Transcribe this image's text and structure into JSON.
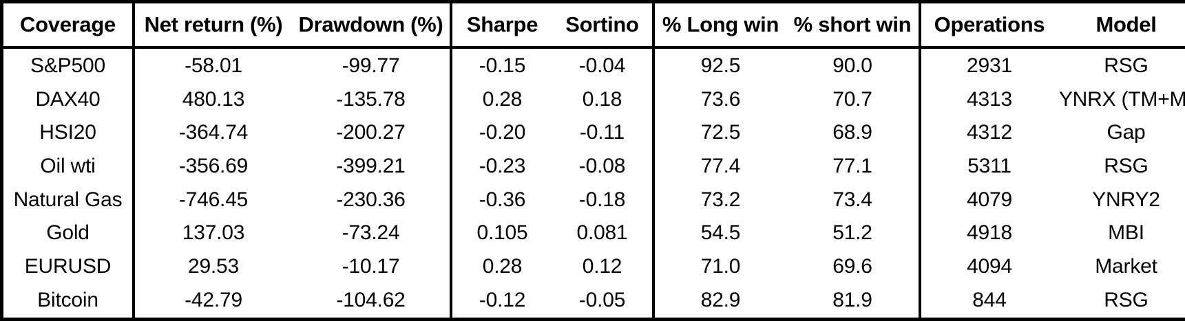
{
  "colors": {
    "border": "#000000",
    "text": "#000000",
    "background": "#ffffff"
  },
  "chart_data": {
    "type": "table",
    "title": "",
    "columns": [
      {
        "key": "coverage",
        "label": "Coverage",
        "group_end": true
      },
      {
        "key": "net_return",
        "label": "Net return (%)",
        "group_end": false
      },
      {
        "key": "drawdown",
        "label": "Drawdown (%)",
        "group_end": true
      },
      {
        "key": "sharpe",
        "label": "Sharpe",
        "group_end": false
      },
      {
        "key": "sortino",
        "label": "Sortino",
        "group_end": true
      },
      {
        "key": "long_win",
        "label": "% Long win",
        "group_end": false
      },
      {
        "key": "short_win",
        "label": "% short win",
        "group_end": true
      },
      {
        "key": "operations",
        "label": "Operations",
        "group_end": false
      },
      {
        "key": "model",
        "label": "Model",
        "group_end": false
      }
    ],
    "rows": [
      {
        "coverage": "S&P500",
        "net_return": "-58.01",
        "drawdown": "-99.77",
        "sharpe": "-0.15",
        "sortino": "-0.04",
        "long_win": "92.5",
        "short_win": "90.0",
        "operations": "2931",
        "model": "RSG"
      },
      {
        "coverage": "DAX40",
        "net_return": "480.13",
        "drawdown": "-135.78",
        "sharpe": "0.28",
        "sortino": "0.18",
        "long_win": "73.6",
        "short_win": "70.7",
        "operations": "4313",
        "model": "YNRX (TM+M)"
      },
      {
        "coverage": "HSI20",
        "net_return": "-364.74",
        "drawdown": "-200.27",
        "sharpe": "-0.20",
        "sortino": "-0.11",
        "long_win": "72.5",
        "short_win": "68.9",
        "operations": "4312",
        "model": "Gap"
      },
      {
        "coverage": "Oil wti",
        "net_return": "-356.69",
        "drawdown": "-399.21",
        "sharpe": "-0.23",
        "sortino": "-0.08",
        "long_win": "77.4",
        "short_win": "77.1",
        "operations": "5311",
        "model": "RSG"
      },
      {
        "coverage": "Natural Gas",
        "net_return": "-746.45",
        "drawdown": "-230.36",
        "sharpe": "-0.36",
        "sortino": "-0.18",
        "long_win": "73.2",
        "short_win": "73.4",
        "operations": "4079",
        "model": "YNRY2"
      },
      {
        "coverage": "Gold",
        "net_return": "137.03",
        "drawdown": "-73.24",
        "sharpe": "0.105",
        "sortino": "0.081",
        "long_win": "54.5",
        "short_win": "51.2",
        "operations": "4918",
        "model": "MBI"
      },
      {
        "coverage": "EURUSD",
        "net_return": "29.53",
        "drawdown": "-10.17",
        "sharpe": "0.28",
        "sortino": "0.12",
        "long_win": "71.0",
        "short_win": "69.6",
        "operations": "4094",
        "model": "Market"
      },
      {
        "coverage": "Bitcoin",
        "net_return": "-42.79",
        "drawdown": "-104.62",
        "sharpe": "-0.12",
        "sortino": "-0.05",
        "long_win": "82.9",
        "short_win": "81.9",
        "operations": "844",
        "model": "RSG"
      }
    ]
  }
}
